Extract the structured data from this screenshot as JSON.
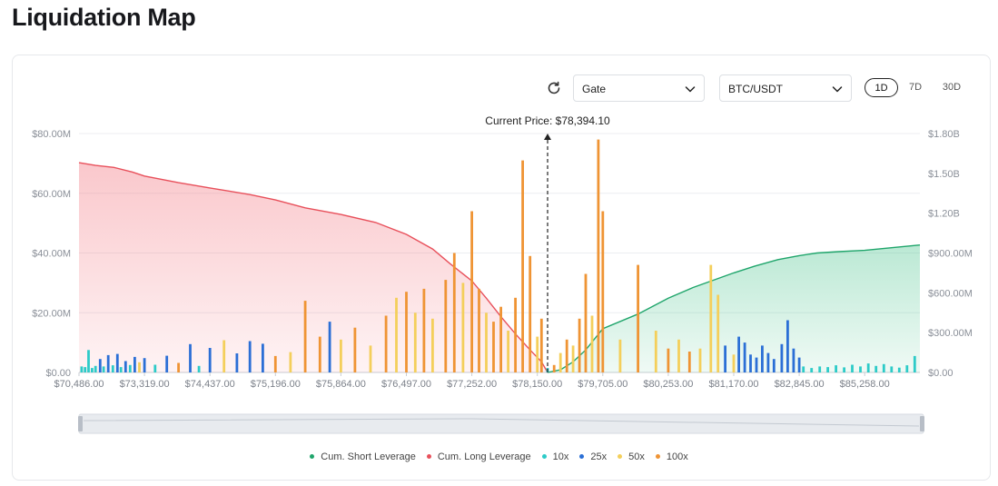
{
  "page": {
    "title": "Liquidation Map"
  },
  "controls": {
    "refresh_icon": "refresh-icon",
    "exchange": "Gate",
    "pair": "BTC/USDT",
    "timeframes": [
      {
        "label": "1D",
        "active": true
      },
      {
        "label": "7D",
        "active": false
      },
      {
        "label": "30D",
        "active": false
      }
    ]
  },
  "chart_data": {
    "type": "bar",
    "current_price_label": "Current Price: $78,394.10",
    "current_price": 78394.1,
    "x_range": [
      70486,
      87400
    ],
    "x_ticks": [
      {
        "value": 70486,
        "label": "$70,486.00"
      },
      {
        "value": 73319,
        "label": "$73,319.00"
      },
      {
        "value": 74437,
        "label": "$74,437.00"
      },
      {
        "value": 75196,
        "label": "$75,196.00"
      },
      {
        "value": 75864,
        "label": "$75,864.00"
      },
      {
        "value": 76497,
        "label": "$76,497.00"
      },
      {
        "value": 77252,
        "label": "$77,252.00"
      },
      {
        "value": 78150,
        "label": "$78,150.00"
      },
      {
        "value": 79705,
        "label": "$79,705.00"
      },
      {
        "value": 80253,
        "label": "$80,253.00"
      },
      {
        "value": 81170,
        "label": "$81,170.00"
      },
      {
        "value": 82845,
        "label": "$82,845.00"
      },
      {
        "value": 85258,
        "label": "$85,258.00"
      }
    ],
    "y_left": {
      "range": [
        0,
        80000000
      ],
      "ticks": [
        "$0.00",
        "$20.00M",
        "$40.00M",
        "$60.00M",
        "$80.00M"
      ]
    },
    "y_right": {
      "range": [
        0,
        1800000000
      ],
      "ticks": [
        "$0.00",
        "$300.00M",
        "$600.00M",
        "$900.00M",
        "$1.20B",
        "$1.50B",
        "$1.80B"
      ]
    },
    "grid": true,
    "legend_position": "bottom",
    "series_colors": {
      "Cum. Short Leverage": "#1fa56b",
      "Cum. Long Leverage": "#e8505b",
      "10x": "#2dcbc8",
      "25x": "#2b6fd6",
      "50x": "#f4cf5b",
      "100x": "#ef9434"
    },
    "legend": [
      "Cum. Short Leverage",
      "Cum. Long Leverage",
      "10x",
      "25x",
      "50x",
      "100x"
    ],
    "cum_long": {
      "name": "Cum. Long Leverage",
      "points": [
        [
          70486,
          1580000000
        ],
        [
          71200,
          1560000000
        ],
        [
          72000,
          1545000000
        ],
        [
          72800,
          1510000000
        ],
        [
          73319,
          1480000000
        ],
        [
          73900,
          1430000000
        ],
        [
          74437,
          1390000000
        ],
        [
          74900,
          1340000000
        ],
        [
          75196,
          1300000000
        ],
        [
          75500,
          1240000000
        ],
        [
          75864,
          1190000000
        ],
        [
          76200,
          1130000000
        ],
        [
          76497,
          1040000000
        ],
        [
          76800,
          930000000
        ],
        [
          77000,
          820000000
        ],
        [
          77252,
          690000000
        ],
        [
          77450,
          560000000
        ],
        [
          77650,
          420000000
        ],
        [
          77850,
          290000000
        ],
        [
          78050,
          170000000
        ],
        [
          78250,
          80000000
        ],
        [
          78394,
          0
        ]
      ]
    },
    "cum_short": {
      "name": "Cum. Short Leverage",
      "points": [
        [
          78394,
          0
        ],
        [
          78700,
          20000000
        ],
        [
          79000,
          80000000
        ],
        [
          79300,
          170000000
        ],
        [
          79705,
          330000000
        ],
        [
          80000,
          440000000
        ],
        [
          80253,
          560000000
        ],
        [
          80600,
          640000000
        ],
        [
          81170,
          750000000
        ],
        [
          81700,
          800000000
        ],
        [
          82300,
          850000000
        ],
        [
          82845,
          880000000
        ],
        [
          83500,
          900000000
        ],
        [
          84300,
          910000000
        ],
        [
          85258,
          920000000
        ],
        [
          86300,
          940000000
        ],
        [
          87400,
          960000000
        ]
      ]
    },
    "bars": [
      {
        "x": 70600,
        "l": "10x",
        "v": 2000000
      },
      {
        "x": 70750,
        "l": "10x",
        "v": 1800000
      },
      {
        "x": 70900,
        "l": "10x",
        "v": 7500000
      },
      {
        "x": 71050,
        "l": "10x",
        "v": 1500000
      },
      {
        "x": 71200,
        "l": "10x",
        "v": 2200000
      },
      {
        "x": 71400,
        "l": "25x",
        "v": 4500000
      },
      {
        "x": 71550,
        "l": "10x",
        "v": 2000000
      },
      {
        "x": 71750,
        "l": "25x",
        "v": 5800000
      },
      {
        "x": 71950,
        "l": "10x",
        "v": 2400000
      },
      {
        "x": 72150,
        "l": "25x",
        "v": 6200000
      },
      {
        "x": 72300,
        "l": "10x",
        "v": 1800000
      },
      {
        "x": 72500,
        "l": "25x",
        "v": 3800000
      },
      {
        "x": 72700,
        "l": "10x",
        "v": 2500000
      },
      {
        "x": 72900,
        "l": "25x",
        "v": 5200000
      },
      {
        "x": 73100,
        "l": "50x",
        "v": 3400000
      },
      {
        "x": 73319,
        "l": "25x",
        "v": 4800000
      },
      {
        "x": 73500,
        "l": "10x",
        "v": 2600000
      },
      {
        "x": 73700,
        "l": "25x",
        "v": 5600000
      },
      {
        "x": 73900,
        "l": "100x",
        "v": 3200000
      },
      {
        "x": 74100,
        "l": "25x",
        "v": 9500000
      },
      {
        "x": 74250,
        "l": "10x",
        "v": 2200000
      },
      {
        "x": 74437,
        "l": "25x",
        "v": 8200000
      },
      {
        "x": 74600,
        "l": "50x",
        "v": 10800000
      },
      {
        "x": 74750,
        "l": "25x",
        "v": 6400000
      },
      {
        "x": 74900,
        "l": "25x",
        "v": 10500000
      },
      {
        "x": 75050,
        "l": "25x",
        "v": 9600000
      },
      {
        "x": 75196,
        "l": "100x",
        "v": 5500000
      },
      {
        "x": 75350,
        "l": "50x",
        "v": 6800000
      },
      {
        "x": 75500,
        "l": "100x",
        "v": 24000000
      },
      {
        "x": 75650,
        "l": "100x",
        "v": 12000000
      },
      {
        "x": 75750,
        "l": "25x",
        "v": 17000000
      },
      {
        "x": 75864,
        "l": "50x",
        "v": 11000000
      },
      {
        "x": 76000,
        "l": "100x",
        "v": 15000000
      },
      {
        "x": 76150,
        "l": "50x",
        "v": 9000000
      },
      {
        "x": 76300,
        "l": "100x",
        "v": 19000000
      },
      {
        "x": 76400,
        "l": "50x",
        "v": 25000000
      },
      {
        "x": 76497,
        "l": "100x",
        "v": 27000000
      },
      {
        "x": 76600,
        "l": "50x",
        "v": 20000000
      },
      {
        "x": 76700,
        "l": "100x",
        "v": 28000000
      },
      {
        "x": 76800,
        "l": "50x",
        "v": 18000000
      },
      {
        "x": 76950,
        "l": "100x",
        "v": 31000000
      },
      {
        "x": 77050,
        "l": "100x",
        "v": 40000000
      },
      {
        "x": 77150,
        "l": "50x",
        "v": 30000000
      },
      {
        "x": 77252,
        "l": "100x",
        "v": 54000000
      },
      {
        "x": 77350,
        "l": "100x",
        "v": 28000000
      },
      {
        "x": 77450,
        "l": "50x",
        "v": 20000000
      },
      {
        "x": 77550,
        "l": "100x",
        "v": 17000000
      },
      {
        "x": 77650,
        "l": "100x",
        "v": 22000000
      },
      {
        "x": 77750,
        "l": "50x",
        "v": 14000000
      },
      {
        "x": 77850,
        "l": "100x",
        "v": 25000000
      },
      {
        "x": 77950,
        "l": "100x",
        "v": 71000000
      },
      {
        "x": 78050,
        "l": "100x",
        "v": 39000000
      },
      {
        "x": 78150,
        "l": "50x",
        "v": 12000000
      },
      {
        "x": 78250,
        "l": "100x",
        "v": 18000000
      },
      {
        "x": 78394,
        "l": "10x",
        "v": 1500000
      },
      {
        "x": 78550,
        "l": "100x",
        "v": 2500000
      },
      {
        "x": 78700,
        "l": "50x",
        "v": 6500000
      },
      {
        "x": 78850,
        "l": "100x",
        "v": 11000000
      },
      {
        "x": 79000,
        "l": "50x",
        "v": 9000000
      },
      {
        "x": 79150,
        "l": "100x",
        "v": 18000000
      },
      {
        "x": 79300,
        "l": "100x",
        "v": 33000000
      },
      {
        "x": 79450,
        "l": "50x",
        "v": 19000000
      },
      {
        "x": 79600,
        "l": "100x",
        "v": 78000000
      },
      {
        "x": 79705,
        "l": "100x",
        "v": 54000000
      },
      {
        "x": 79850,
        "l": "50x",
        "v": 11000000
      },
      {
        "x": 80000,
        "l": "100x",
        "v": 36000000
      },
      {
        "x": 80150,
        "l": "50x",
        "v": 14000000
      },
      {
        "x": 80253,
        "l": "100x",
        "v": 8000000
      },
      {
        "x": 80400,
        "l": "50x",
        "v": 11000000
      },
      {
        "x": 80550,
        "l": "100x",
        "v": 7000000
      },
      {
        "x": 80700,
        "l": "50x",
        "v": 8000000
      },
      {
        "x": 80850,
        "l": "50x",
        "v": 36000000
      },
      {
        "x": 80950,
        "l": "50x",
        "v": 26000000
      },
      {
        "x": 81050,
        "l": "25x",
        "v": 9000000
      },
      {
        "x": 81170,
        "l": "50x",
        "v": 6000000
      },
      {
        "x": 81300,
        "l": "25x",
        "v": 12000000
      },
      {
        "x": 81450,
        "l": "25x",
        "v": 10000000
      },
      {
        "x": 81600,
        "l": "25x",
        "v": 6000000
      },
      {
        "x": 81750,
        "l": "25x",
        "v": 5000000
      },
      {
        "x": 81900,
        "l": "25x",
        "v": 9000000
      },
      {
        "x": 82050,
        "l": "25x",
        "v": 6500000
      },
      {
        "x": 82200,
        "l": "25x",
        "v": 4500000
      },
      {
        "x": 82400,
        "l": "25x",
        "v": 9500000
      },
      {
        "x": 82550,
        "l": "25x",
        "v": 17500000
      },
      {
        "x": 82700,
        "l": "25x",
        "v": 8000000
      },
      {
        "x": 82845,
        "l": "25x",
        "v": 5000000
      },
      {
        "x": 83000,
        "l": "10x",
        "v": 2000000
      },
      {
        "x": 83300,
        "l": "10x",
        "v": 1500000
      },
      {
        "x": 83600,
        "l": "10x",
        "v": 2000000
      },
      {
        "x": 83900,
        "l": "10x",
        "v": 1800000
      },
      {
        "x": 84200,
        "l": "10x",
        "v": 2400000
      },
      {
        "x": 84500,
        "l": "10x",
        "v": 1700000
      },
      {
        "x": 84800,
        "l": "10x",
        "v": 2600000
      },
      {
        "x": 85100,
        "l": "10x",
        "v": 2000000
      },
      {
        "x": 85400,
        "l": "10x",
        "v": 3000000
      },
      {
        "x": 85700,
        "l": "10x",
        "v": 2200000
      },
      {
        "x": 86000,
        "l": "10x",
        "v": 2800000
      },
      {
        "x": 86300,
        "l": "10x",
        "v": 2000000
      },
      {
        "x": 86600,
        "l": "10x",
        "v": 1600000
      },
      {
        "x": 86900,
        "l": "10x",
        "v": 2400000
      },
      {
        "x": 87200,
        "l": "10x",
        "v": 5500000
      }
    ]
  }
}
